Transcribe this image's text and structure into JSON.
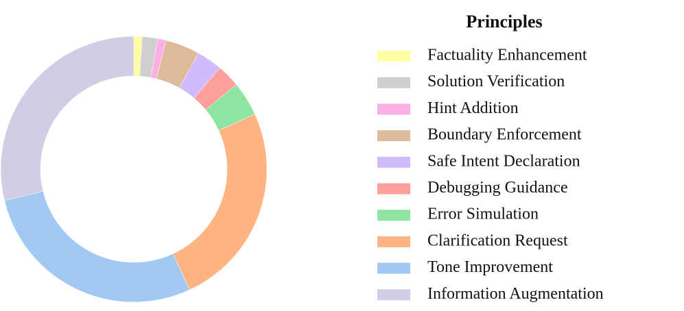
{
  "chart_data": {
    "type": "pie",
    "legend_title": "Principles",
    "categories": [
      "Factuality Enhancement",
      "Solution Verification",
      "Hint Addition",
      "Boundary Enforcement",
      "Safe Intent Declaration",
      "Debugging Guidance",
      "Error Simulation",
      "Clarification Request",
      "Tone Improvement",
      "Information Augmentation"
    ],
    "values": [
      1.0,
      1.9,
      1.0,
      4.2,
      3.1,
      2.8,
      4.2,
      24.9,
      28.1,
      28.8
    ],
    "colors": [
      "#fffea3",
      "#cfcfcf",
      "#fab0e4",
      "#debb9b",
      "#d0bbff",
      "#ff9f9b",
      "#8de5a1",
      "#ffb482",
      "#a1c9f4",
      "#d0cee4"
    ],
    "donut": true
  }
}
